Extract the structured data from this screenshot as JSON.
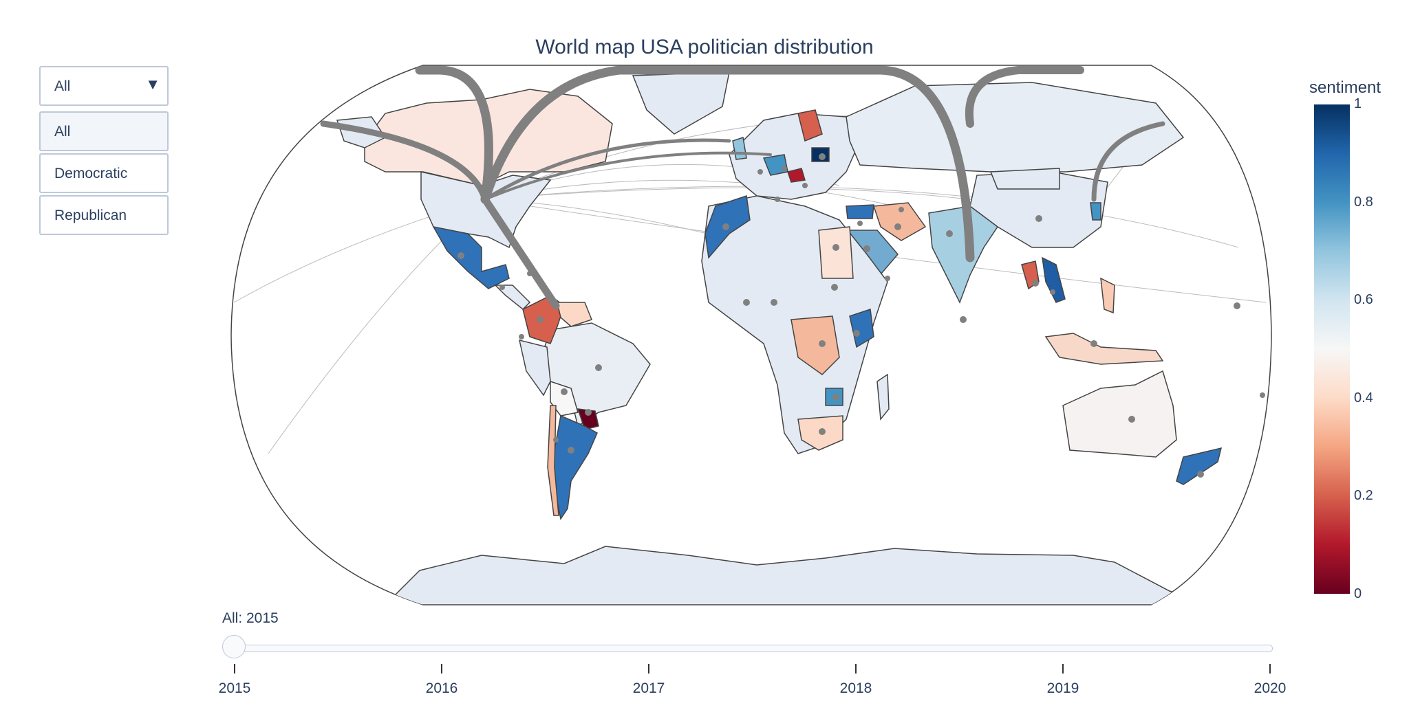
{
  "title": "World map USA politician distribution",
  "party_filter": {
    "selected": "All",
    "options": [
      "All",
      "Democratic",
      "Republican"
    ]
  },
  "colorbar": {
    "title": "sentiment",
    "ticks": [
      "1",
      "0.8",
      "0.6",
      "0.4",
      "0.2",
      "0"
    ],
    "colorscale": [
      "#053061",
      "#2166ac",
      "#4393c3",
      "#92c5de",
      "#d1e5f0",
      "#f7f7f7",
      "#fddbc7",
      "#f4a582",
      "#d6604d",
      "#b2182b",
      "#67001f"
    ]
  },
  "slider": {
    "current_label": "All: 2015",
    "value": "2015",
    "steps": [
      "2015",
      "2016",
      "2017",
      "2018",
      "2019",
      "2020"
    ]
  },
  "map": {
    "projection": "natural earth",
    "flow_origin": "USA",
    "land_color": "#e5ecf6",
    "line_color": "#808080",
    "point_color": "#808080"
  }
}
